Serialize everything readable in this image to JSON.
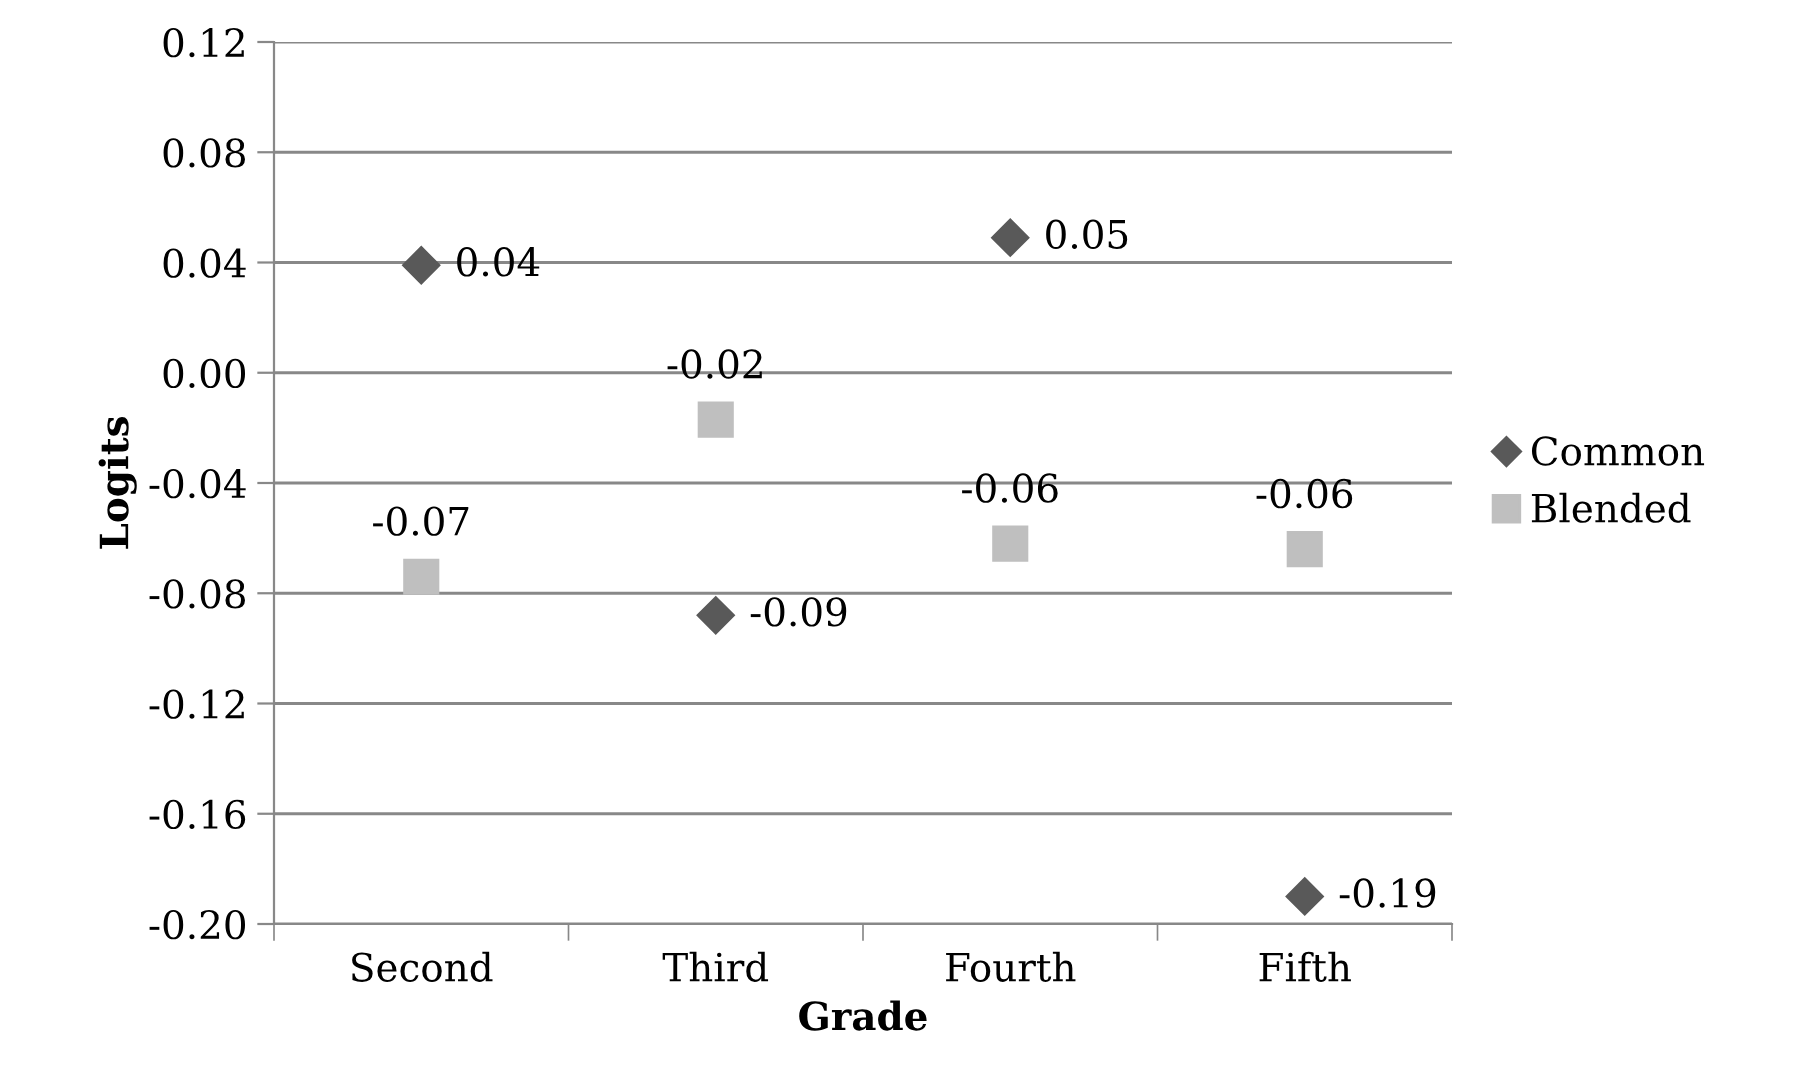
{
  "chart_data": {
    "type": "scatter",
    "xlabel": "Grade",
    "ylabel": "Logits",
    "categories": [
      "Second",
      "Third",
      "Fourth",
      "Fifth"
    ],
    "series": [
      {
        "name": "Common",
        "color": "#595959",
        "marker": "diamond",
        "values": [
          0.039,
          -0.088,
          0.049,
          -0.19
        ],
        "value_labels": [
          "0.04",
          "-0.09",
          "0.05",
          "-0.19"
        ]
      },
      {
        "name": "Blended",
        "color": "#bfbfbf",
        "marker": "square",
        "values": [
          -0.074,
          -0.017,
          -0.062,
          -0.064
        ],
        "value_labels": [
          "-0.07",
          "-0.02",
          "-0.06",
          "-0.06"
        ]
      }
    ],
    "ylim": [
      -0.2,
      0.12
    ],
    "yticks": [
      {
        "value": -0.2,
        "label": "-0.20"
      },
      {
        "value": -0.16,
        "label": "-0.16"
      },
      {
        "value": -0.12,
        "label": "-0.12"
      },
      {
        "value": -0.08,
        "label": "-0.08"
      },
      {
        "value": -0.04,
        "label": "-0.04"
      },
      {
        "value": 0,
        "label": "0.00"
      },
      {
        "value": 0.04,
        "label": "0.04"
      },
      {
        "value": 0.08,
        "label": "0.08"
      },
      {
        "value": 0.12,
        "label": "0.12"
      }
    ],
    "grid": "y",
    "legend": "right"
  }
}
